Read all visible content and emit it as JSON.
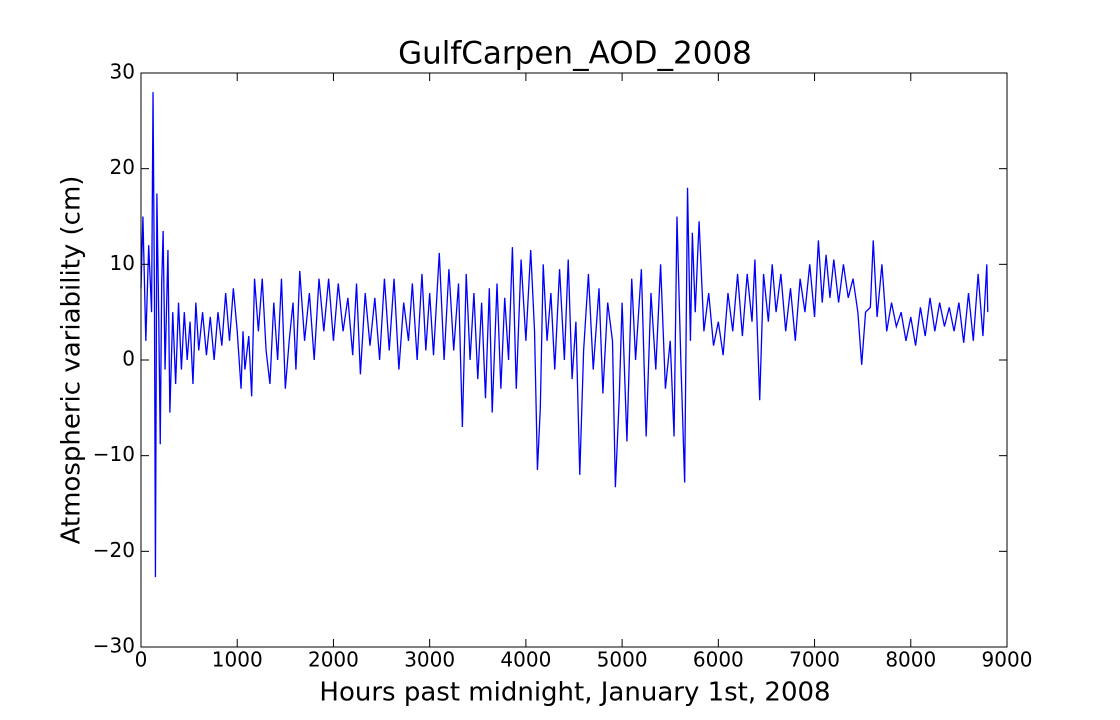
{
  "chart_data": {
    "type": "line",
    "title": "GulfCarpen_AOD_2008",
    "x_label": "Hours past midnight, January 1st, 2008",
    "y_label": "Atmospheric variability (cm)",
    "xlim": [
      0,
      9000
    ],
    "xticks": [
      0,
      1000,
      2000,
      3000,
      4000,
      5000,
      6000,
      7000,
      8000,
      9000
    ],
    "ylim": [
      -30,
      30
    ],
    "yticks": [
      {
        "value": -30,
        "label": "−30"
      },
      {
        "value": -20,
        "label": "−20"
      },
      {
        "value": -10,
        "label": "−10"
      },
      0,
      10,
      20,
      30
    ],
    "x": [
      0,
      20,
      50,
      80,
      110,
      125,
      140,
      150,
      165,
      185,
      200,
      215,
      230,
      250,
      280,
      300,
      330,
      360,
      390,
      420,
      450,
      480,
      510,
      540,
      570,
      600,
      640,
      680,
      720,
      760,
      800,
      840,
      880,
      920,
      960,
      1000,
      1040,
      1060,
      1080,
      1120,
      1150,
      1180,
      1220,
      1260,
      1300,
      1340,
      1380,
      1420,
      1460,
      1500,
      1540,
      1580,
      1610,
      1650,
      1700,
      1750,
      1800,
      1850,
      1900,
      1950,
      2000,
      2050,
      2100,
      2150,
      2200,
      2240,
      2280,
      2330,
      2380,
      2430,
      2480,
      2530,
      2580,
      2630,
      2680,
      2730,
      2780,
      2820,
      2870,
      2920,
      2960,
      3000,
      3040,
      3100,
      3150,
      3200,
      3250,
      3300,
      3340,
      3380,
      3420,
      3460,
      3500,
      3540,
      3580,
      3620,
      3650,
      3700,
      3740,
      3780,
      3820,
      3860,
      3900,
      3950,
      4000,
      4050,
      4090,
      4120,
      4150,
      4180,
      4220,
      4260,
      4300,
      4350,
      4400,
      4440,
      4480,
      4520,
      4560,
      4600,
      4650,
      4700,
      4760,
      4800,
      4850,
      4900,
      4930,
      4970,
      5000,
      5050,
      5100,
      5140,
      5200,
      5250,
      5300,
      5350,
      5400,
      5450,
      5500,
      5540,
      5570,
      5610,
      5650,
      5680,
      5710,
      5730,
      5760,
      5800,
      5850,
      5900,
      5950,
      6000,
      6050,
      6100,
      6150,
      6200,
      6250,
      6300,
      6350,
      6380,
      6430,
      6470,
      6520,
      6560,
      6600,
      6650,
      6700,
      6750,
      6800,
      6850,
      6900,
      6950,
      7000,
      7040,
      7080,
      7120,
      7160,
      7200,
      7250,
      7300,
      7350,
      7400,
      7450,
      7490,
      7530,
      7580,
      7610,
      7650,
      7700,
      7750,
      7800,
      7850,
      7900,
      7950,
      8000,
      8050,
      8100,
      8150,
      8200,
      8250,
      8300,
      8350,
      8400,
      8450,
      8500,
      8550,
      8600,
      8650,
      8700,
      8750,
      8790,
      8800
    ],
    "series": [
      {
        "name": "AOD",
        "color": "#0000ff",
        "values": [
          7.5,
          15,
          2,
          12,
          5,
          28,
          6,
          -22.7,
          17.4,
          4,
          -8.8,
          8,
          13.5,
          -1,
          11.5,
          -5.5,
          5,
          -2.5,
          6,
          -1,
          5,
          0,
          4,
          -2.5,
          6,
          1,
          5,
          0.5,
          4.5,
          0,
          5,
          1.5,
          7,
          2,
          7.5,
          3,
          -3,
          3,
          -1,
          2.5,
          -3.8,
          8.5,
          3,
          8.5,
          1,
          -2.5,
          6,
          0,
          8.5,
          -3,
          2,
          6,
          -1,
          9.3,
          2,
          7,
          0,
          8.5,
          3,
          8.5,
          2,
          8,
          3,
          6.5,
          0.5,
          8,
          -1.5,
          7,
          1.5,
          6.5,
          0,
          8.5,
          1,
          8.5,
          -1,
          6,
          2,
          8,
          0,
          9,
          1,
          7,
          0.5,
          11.2,
          0,
          9.5,
          1,
          8,
          -7,
          9,
          0,
          7,
          -2,
          6,
          -4,
          7.5,
          -5.5,
          8,
          -3,
          6.5,
          0,
          11.8,
          -3,
          10.5,
          2,
          11.5,
          3,
          -11.5,
          -5,
          10,
          2,
          7,
          -1,
          9.5,
          0,
          10.5,
          -2,
          4,
          -12,
          1,
          9,
          -1,
          7.5,
          -3.5,
          6,
          2,
          -13.3,
          -4,
          6,
          -8.5,
          8.5,
          0,
          9.5,
          -8,
          7,
          -1,
          10,
          -3,
          2,
          -8,
          15,
          0,
          -12.8,
          18,
          2,
          13.3,
          5,
          14.5,
          3,
          7,
          1.5,
          4,
          0.5,
          7,
          3,
          9,
          2.5,
          9,
          4,
          10.5,
          -4.2,
          9,
          4,
          10,
          5,
          9,
          3,
          7.5,
          2,
          8.5,
          5,
          10,
          4.5,
          12.5,
          6,
          11,
          6.5,
          10.5,
          6,
          10,
          6.5,
          8.5,
          5,
          -0.5,
          5,
          5.5,
          12.5,
          4.5,
          10,
          3,
          6,
          3.5,
          5,
          2,
          4.5,
          1.5,
          5.5,
          2.5,
          6.5,
          3,
          6,
          3.5,
          5.5,
          3,
          6,
          1.8,
          7,
          2,
          9,
          2.5,
          10,
          5
        ]
      }
    ]
  }
}
